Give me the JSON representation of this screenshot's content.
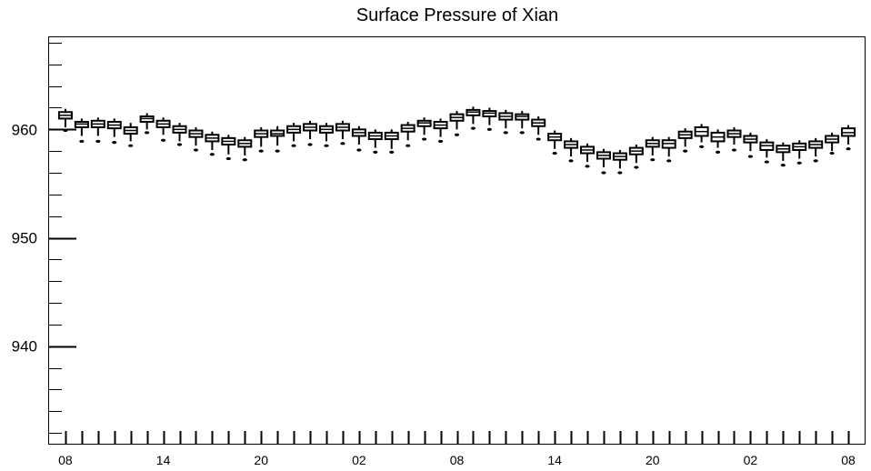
{
  "chart_data": {
    "type": "box",
    "title": "Surface Pressure of Xian",
    "xlabel": "",
    "ylabel": "",
    "ylim": [
      931,
      968.5
    ],
    "yticks": [
      940,
      950,
      960
    ],
    "xticks": [
      "08",
      "14",
      "20",
      "02",
      "08",
      "14",
      "20",
      "02",
      "08"
    ],
    "xtick_positions": [
      0,
      6,
      12,
      18,
      24,
      30,
      36,
      42,
      48
    ],
    "x_range": [
      -1,
      49
    ],
    "grid": false,
    "legend": "none",
    "series": [
      {
        "boxes": [
          {
            "x": 0,
            "q1": 961.0,
            "median": 961.3,
            "q3": 961.6,
            "low": 960.2,
            "high": 961.9,
            "outlier": 959.9
          },
          {
            "x": 1,
            "q1": 960.2,
            "median": 960.5,
            "q3": 960.7,
            "low": 959.4,
            "high": 961.0,
            "outlier": 958.9
          },
          {
            "x": 2,
            "q1": 960.2,
            "median": 960.5,
            "q3": 960.8,
            "low": 959.4,
            "high": 961.1,
            "outlier": 958.9
          },
          {
            "x": 3,
            "q1": 960.1,
            "median": 960.4,
            "q3": 960.7,
            "low": 959.3,
            "high": 961.0,
            "outlier": 958.8
          },
          {
            "x": 4,
            "q1": 959.6,
            "median": 959.9,
            "q3": 960.2,
            "low": 958.9,
            "high": 960.6,
            "outlier": 958.5
          },
          {
            "x": 5,
            "q1": 960.7,
            "median": 961.0,
            "q3": 961.2,
            "low": 960.0,
            "high": 961.5,
            "outlier": 959.7
          },
          {
            "x": 6,
            "q1": 960.2,
            "median": 960.5,
            "q3": 960.8,
            "low": 959.5,
            "high": 961.1,
            "outlier": 959.0
          },
          {
            "x": 7,
            "q1": 959.7,
            "median": 960.0,
            "q3": 960.3,
            "low": 958.9,
            "high": 960.6,
            "outlier": 958.6
          },
          {
            "x": 8,
            "q1": 959.3,
            "median": 959.6,
            "q3": 959.9,
            "low": 958.5,
            "high": 960.2,
            "outlier": 958.1
          },
          {
            "x": 9,
            "q1": 958.9,
            "median": 959.2,
            "q3": 959.5,
            "low": 958.1,
            "high": 959.8,
            "outlier": 957.7
          },
          {
            "x": 10,
            "q1": 958.6,
            "median": 958.9,
            "q3": 959.2,
            "low": 957.7,
            "high": 959.5,
            "outlier": 957.3
          },
          {
            "x": 11,
            "q1": 958.4,
            "median": 958.7,
            "q3": 959.0,
            "low": 957.6,
            "high": 959.3,
            "outlier": 957.2
          },
          {
            "x": 12,
            "q1": 959.3,
            "median": 959.6,
            "q3": 959.9,
            "low": 958.4,
            "high": 960.2,
            "outlier": 958.0
          },
          {
            "x": 13,
            "q1": 959.4,
            "median": 959.6,
            "q3": 959.9,
            "low": 958.5,
            "high": 960.3,
            "outlier": 958.0
          },
          {
            "x": 14,
            "q1": 959.7,
            "median": 960.0,
            "q3": 960.3,
            "low": 958.9,
            "high": 960.6,
            "outlier": 958.5
          },
          {
            "x": 15,
            "q1": 959.9,
            "median": 960.2,
            "q3": 960.5,
            "low": 959.1,
            "high": 960.8,
            "outlier": 958.6
          },
          {
            "x": 16,
            "q1": 959.7,
            "median": 960.0,
            "q3": 960.3,
            "low": 958.9,
            "high": 960.6,
            "outlier": 958.5
          },
          {
            "x": 17,
            "q1": 959.9,
            "median": 960.2,
            "q3": 960.5,
            "low": 959.1,
            "high": 960.8,
            "outlier": 958.7
          },
          {
            "x": 18,
            "q1": 959.4,
            "median": 959.7,
            "q3": 960.0,
            "low": 958.6,
            "high": 960.3,
            "outlier": 958.1
          },
          {
            "x": 19,
            "q1": 959.1,
            "median": 959.4,
            "q3": 959.7,
            "low": 958.3,
            "high": 960.0,
            "outlier": 957.9
          },
          {
            "x": 20,
            "q1": 959.1,
            "median": 959.4,
            "q3": 959.7,
            "low": 958.2,
            "high": 960.0,
            "outlier": 957.9
          },
          {
            "x": 21,
            "q1": 959.8,
            "median": 960.1,
            "q3": 960.4,
            "low": 959.0,
            "high": 960.7,
            "outlier": 958.5
          },
          {
            "x": 22,
            "q1": 960.3,
            "median": 960.6,
            "q3": 960.8,
            "low": 959.5,
            "high": 961.1,
            "outlier": 959.1
          },
          {
            "x": 23,
            "q1": 960.1,
            "median": 960.4,
            "q3": 960.7,
            "low": 959.3,
            "high": 961.0,
            "outlier": 958.9
          },
          {
            "x": 24,
            "q1": 960.8,
            "median": 961.1,
            "q3": 961.4,
            "low": 960.0,
            "high": 961.7,
            "outlier": 959.5
          },
          {
            "x": 25,
            "q1": 961.3,
            "median": 961.6,
            "q3": 961.8,
            "low": 960.5,
            "high": 962.1,
            "outlier": 960.1
          },
          {
            "x": 26,
            "q1": 961.2,
            "median": 961.5,
            "q3": 961.7,
            "low": 960.4,
            "high": 962.0,
            "outlier": 960.0
          },
          {
            "x": 27,
            "q1": 960.9,
            "median": 961.2,
            "q3": 961.5,
            "low": 960.1,
            "high": 961.8,
            "outlier": 959.7
          },
          {
            "x": 28,
            "q1": 960.9,
            "median": 961.2,
            "q3": 961.4,
            "low": 960.1,
            "high": 961.7,
            "outlier": 959.7
          },
          {
            "x": 29,
            "q1": 960.3,
            "median": 960.6,
            "q3": 960.9,
            "low": 959.5,
            "high": 961.2,
            "outlier": 959.1
          },
          {
            "x": 30,
            "q1": 959.0,
            "median": 959.3,
            "q3": 959.6,
            "low": 958.2,
            "high": 959.9,
            "outlier": 957.8
          },
          {
            "x": 31,
            "q1": 958.3,
            "median": 958.6,
            "q3": 958.9,
            "low": 957.5,
            "high": 959.2,
            "outlier": 957.1
          },
          {
            "x": 32,
            "q1": 957.8,
            "median": 958.1,
            "q3": 958.4,
            "low": 957.0,
            "high": 958.7,
            "outlier": 956.6
          },
          {
            "x": 33,
            "q1": 957.3,
            "median": 957.6,
            "q3": 957.9,
            "low": 956.5,
            "high": 958.2,
            "outlier": 956.0
          },
          {
            "x": 34,
            "q1": 957.2,
            "median": 957.5,
            "q3": 957.8,
            "low": 956.4,
            "high": 958.1,
            "outlier": 956.0
          },
          {
            "x": 35,
            "q1": 957.7,
            "median": 958.0,
            "q3": 958.3,
            "low": 956.9,
            "high": 958.6,
            "outlier": 956.5
          },
          {
            "x": 36,
            "q1": 958.4,
            "median": 958.7,
            "q3": 959.0,
            "low": 957.6,
            "high": 959.3,
            "outlier": 957.2
          },
          {
            "x": 37,
            "q1": 958.3,
            "median": 958.7,
            "q3": 959.0,
            "low": 957.5,
            "high": 959.3,
            "outlier": 957.1
          },
          {
            "x": 38,
            "q1": 959.2,
            "median": 959.5,
            "q3": 959.8,
            "low": 958.4,
            "high": 960.1,
            "outlier": 958.0
          },
          {
            "x": 39,
            "q1": 959.4,
            "median": 959.8,
            "q3": 960.2,
            "low": 958.8,
            "high": 960.5,
            "outlier": 958.4
          },
          {
            "x": 40,
            "q1": 958.9,
            "median": 959.3,
            "q3": 959.7,
            "low": 958.3,
            "high": 960.0,
            "outlier": 957.9
          },
          {
            "x": 41,
            "q1": 959.3,
            "median": 959.6,
            "q3": 959.9,
            "low": 958.6,
            "high": 960.2,
            "outlier": 958.1
          },
          {
            "x": 42,
            "q1": 958.8,
            "median": 959.1,
            "q3": 959.4,
            "low": 958.0,
            "high": 959.7,
            "outlier": 957.5
          },
          {
            "x": 43,
            "q1": 958.1,
            "median": 958.5,
            "q3": 958.8,
            "low": 957.4,
            "high": 959.1,
            "outlier": 957.0
          },
          {
            "x": 44,
            "q1": 957.9,
            "median": 958.2,
            "q3": 958.5,
            "low": 957.1,
            "high": 958.8,
            "outlier": 956.7
          },
          {
            "x": 45,
            "q1": 958.1,
            "median": 958.4,
            "q3": 958.7,
            "low": 957.3,
            "high": 959.0,
            "outlier": 956.9
          },
          {
            "x": 46,
            "q1": 958.3,
            "median": 958.6,
            "q3": 958.9,
            "low": 957.5,
            "high": 959.2,
            "outlier": 957.1
          },
          {
            "x": 47,
            "q1": 958.8,
            "median": 959.1,
            "q3": 959.4,
            "low": 958.0,
            "high": 959.7,
            "outlier": 957.8
          },
          {
            "x": 48,
            "q1": 959.4,
            "median": 959.7,
            "q3": 960.1,
            "low": 958.6,
            "high": 960.4,
            "outlier": 958.2
          }
        ]
      }
    ]
  }
}
